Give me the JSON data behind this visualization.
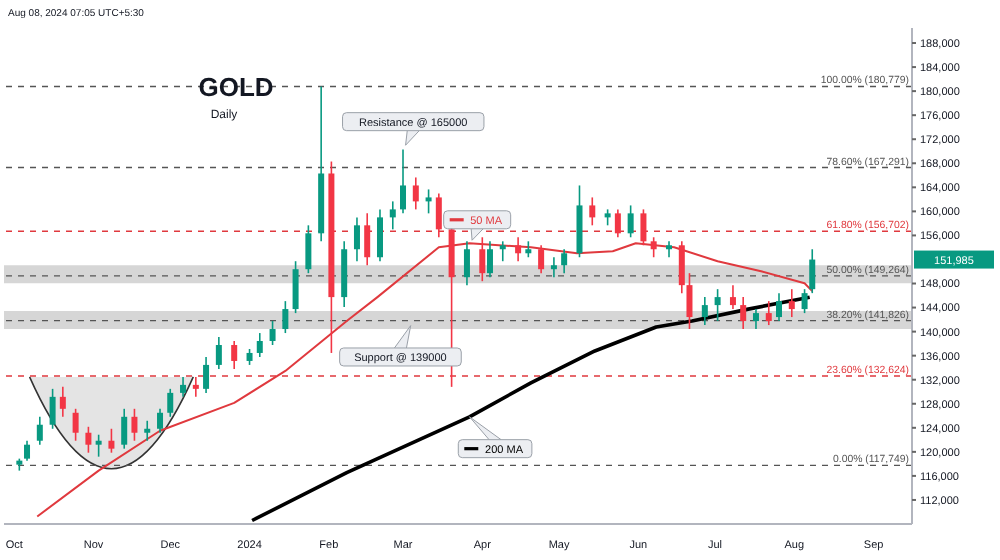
{
  "chart_data": {
    "type": "candlestick",
    "title": "GOLD",
    "subtitle": "Daily",
    "annotations": [
      "Aug 08, 2024 07:05 UTC+5:30",
      "Resistance @ 165000",
      "Support @ 139000",
      "151,985"
    ],
    "x": [
      "2023-10-03",
      "2023-10-06",
      "2023-10-11",
      "2023-10-16",
      "2023-10-20",
      "2023-10-25",
      "2023-10-30",
      "2023-11-03",
      "2023-11-08",
      "2023-11-13",
      "2023-11-17",
      "2023-11-22",
      "2023-11-27",
      "2023-12-01",
      "2023-12-06",
      "2023-12-11",
      "2023-12-15",
      "2023-12-20",
      "2023-12-26",
      "2024-01-01",
      "2024-01-05",
      "2024-01-10",
      "2024-01-15",
      "2024-01-19",
      "2024-01-24",
      "2024-01-29",
      "2024-02-02",
      "2024-02-07",
      "2024-02-12",
      "2024-02-16",
      "2024-02-21",
      "2024-02-26",
      "2024-03-01",
      "2024-03-06",
      "2024-03-11",
      "2024-03-15",
      "2024-03-20",
      "2024-03-26",
      "2024-04-01",
      "2024-04-04",
      "2024-04-09",
      "2024-04-15",
      "2024-04-19",
      "2024-04-24",
      "2024-04-29",
      "2024-05-03",
      "2024-05-09",
      "2024-05-14",
      "2024-05-20",
      "2024-05-24",
      "2024-05-29",
      "2024-06-03",
      "2024-06-07",
      "2024-06-13",
      "2024-06-18",
      "2024-06-21",
      "2024-06-27",
      "2024-07-02",
      "2024-07-08",
      "2024-07-12",
      "2024-07-17",
      "2024-07-22",
      "2024-07-26",
      "2024-07-31",
      "2024-08-05",
      "2024-08-08"
    ],
    "ohlc": [
      [
        117870,
        118870,
        116880,
        118540
      ],
      [
        118870,
        121850,
        118540,
        121190
      ],
      [
        121850,
        125830,
        121190,
        124510
      ],
      [
        124510,
        130480,
        123840,
        129150
      ],
      [
        129150,
        130810,
        125830,
        127160
      ],
      [
        126500,
        127160,
        121850,
        123180
      ],
      [
        123180,
        124170,
        119860,
        121190
      ],
      [
        121190,
        122850,
        119200,
        121850
      ],
      [
        121850,
        123840,
        119860,
        120530
      ],
      [
        121190,
        127160,
        120530,
        125830
      ],
      [
        125830,
        127160,
        121850,
        123180
      ],
      [
        123180,
        125170,
        121850,
        123840
      ],
      [
        123840,
        127160,
        123180,
        126500
      ],
      [
        126500,
        130480,
        125830,
        129810
      ],
      [
        129810,
        132470,
        129150,
        131140
      ],
      [
        131140,
        132470,
        129150,
        130480
      ],
      [
        130480,
        135780,
        129810,
        134460
      ],
      [
        134460,
        139100,
        133790,
        137770
      ],
      [
        137770,
        138440,
        133790,
        135120
      ],
      [
        135120,
        137110,
        134460,
        136450
      ],
      [
        136450,
        139760,
        135780,
        138440
      ],
      [
        138440,
        141760,
        137770,
        140430
      ],
      [
        140430,
        145070,
        139760,
        143750
      ],
      [
        143750,
        151710,
        143080,
        150380
      ],
      [
        150380,
        157680,
        149720,
        156350
      ],
      [
        156350,
        180779,
        155020,
        166300
      ],
      [
        166300,
        168290,
        136450,
        145740
      ],
      [
        145740,
        155020,
        144080,
        153700
      ],
      [
        153700,
        159000,
        151710,
        157680
      ],
      [
        157680,
        159670,
        151040,
        152370
      ],
      [
        152370,
        160330,
        151710,
        159000
      ],
      [
        159000,
        161660,
        157010,
        160330
      ],
      [
        160330,
        170280,
        159670,
        164310
      ],
      [
        164310,
        165640,
        160330,
        161660
      ],
      [
        161660,
        163650,
        159670,
        162320
      ],
      [
        162320,
        162980,
        155690,
        157010
      ],
      [
        157010,
        157680,
        130810,
        149050
      ],
      [
        149050,
        155020,
        147730,
        153700
      ],
      [
        153700,
        155690,
        148390,
        149720
      ],
      [
        149720,
        155020,
        149050,
        153700
      ],
      [
        153700,
        155020,
        151710,
        154360
      ],
      [
        154360,
        155690,
        151710,
        153030
      ],
      [
        153030,
        155020,
        152370,
        153700
      ],
      [
        153700,
        154360,
        149720,
        150380
      ],
      [
        150380,
        152370,
        149050,
        151040
      ],
      [
        151040,
        153700,
        149720,
        153030
      ],
      [
        153030,
        164310,
        152370,
        160990
      ],
      [
        160990,
        162320,
        157680,
        159000
      ],
      [
        159000,
        160330,
        157680,
        159670
      ],
      [
        159670,
        160330,
        155690,
        156350
      ],
      [
        156350,
        160990,
        155690,
        159670
      ],
      [
        159670,
        160330,
        154360,
        155020
      ],
      [
        155020,
        155690,
        152370,
        153700
      ],
      [
        153700,
        155020,
        152370,
        154360
      ],
      [
        154360,
        155020,
        146400,
        147730
      ],
      [
        147730,
        149720,
        140430,
        142420
      ],
      [
        142420,
        145740,
        141090,
        144410
      ],
      [
        144410,
        147060,
        141760,
        145740
      ],
      [
        145740,
        147730,
        143750,
        144410
      ],
      [
        144410,
        145740,
        140430,
        141760
      ],
      [
        141760,
        143750,
        140430,
        143080
      ],
      [
        143080,
        145070,
        141090,
        141760
      ],
      [
        142420,
        146400,
        141760,
        145070
      ],
      [
        145070,
        147060,
        142420,
        143750
      ],
      [
        143750,
        147060,
        143080,
        146400
      ],
      [
        147060,
        153700,
        146400,
        151985
      ]
    ],
    "series": [
      {
        "name": "50 MA",
        "type": "line",
        "color": "#e0393e",
        "x": [
          "2023-10-10",
          "2023-11-03",
          "2023-11-27",
          "2023-12-26",
          "2024-01-15",
          "2024-02-08",
          "2024-02-20",
          "2024-03-15",
          "2024-03-27",
          "2024-04-20",
          "2024-05-08",
          "2024-05-22",
          "2024-05-31",
          "2024-06-15",
          "2024-07-02",
          "2024-07-19",
          "2024-08-05",
          "2024-08-08"
        ],
        "values": [
          109250,
          116880,
          123510,
          128150,
          133460,
          141750,
          145730,
          154030,
          154690,
          154030,
          153030,
          153370,
          154690,
          154030,
          151710,
          150050,
          148040,
          146730
        ]
      },
      {
        "name": "200 MA",
        "type": "line",
        "color": "#000000",
        "x": [
          "2024-01-02",
          "2024-02-08",
          "2024-03-27",
          "2024-04-20",
          "2024-05-15",
          "2024-06-08",
          "2024-06-22",
          "2024-07-14",
          "2024-08-07"
        ],
        "values": [
          108580,
          116540,
          125830,
          131470,
          136780,
          140760,
          141750,
          143740,
          145730
        ]
      }
    ],
    "xlim": [
      "2023-09-27",
      "2024-09-16"
    ],
    "xticks": [
      {
        "value": "2023-10-01",
        "label": "Oct"
      },
      {
        "value": "2023-11-01",
        "label": "Nov"
      },
      {
        "value": "2023-12-01",
        "label": "Dec"
      },
      {
        "value": "2024-01-01",
        "label": "2024"
      },
      {
        "value": "2024-02-01",
        "label": "Feb"
      },
      {
        "value": "2024-03-01",
        "label": "Mar"
      },
      {
        "value": "2024-04-01",
        "label": "Apr"
      },
      {
        "value": "2024-05-01",
        "label": "May"
      },
      {
        "value": "2024-06-01",
        "label": "Jun"
      },
      {
        "value": "2024-07-01",
        "label": "Jul"
      },
      {
        "value": "2024-08-01",
        "label": "Aug"
      },
      {
        "value": "2024-09-01",
        "label": "Sep"
      }
    ],
    "ylim": [
      108000,
      190500
    ],
    "yticks": [
      {
        "value": 112000,
        "label": "112,000"
      },
      {
        "value": 116000,
        "label": "116,000"
      },
      {
        "value": 120000,
        "label": "120,000"
      },
      {
        "value": 124000,
        "label": "124,000"
      },
      {
        "value": 128000,
        "label": "128,000"
      },
      {
        "value": 132000,
        "label": "132,000"
      },
      {
        "value": 136000,
        "label": "136,000"
      },
      {
        "value": 140000,
        "label": "140,000"
      },
      {
        "value": 144000,
        "label": "144,000"
      },
      {
        "value": 148000,
        "label": "148,000"
      },
      {
        "value": 156000,
        "label": "156,000"
      },
      {
        "value": 160000,
        "label": "160,000"
      },
      {
        "value": 164000,
        "label": "164,000"
      },
      {
        "value": 168000,
        "label": "168,000"
      },
      {
        "value": 172000,
        "label": "172,000"
      },
      {
        "value": 176000,
        "label": "176,000"
      },
      {
        "value": 180000,
        "label": "180,000"
      },
      {
        "value": 184000,
        "label": "184,000"
      },
      {
        "value": 188000,
        "label": "188,000"
      }
    ],
    "ref_lines": [
      {
        "axis": "y",
        "value": 180779,
        "label": "100.00% (180,779)",
        "color": "#555555",
        "line_style": "dashed"
      },
      {
        "axis": "y",
        "value": 167291,
        "label": "78.60% (167,291)",
        "color": "#555555",
        "line_style": "dashed"
      },
      {
        "axis": "y",
        "value": 156702,
        "label": "61.80% (156,702)",
        "color": "#e0393e",
        "line_style": "dashed"
      },
      {
        "axis": "y",
        "value": 149264,
        "label": "50.00% (149,264)",
        "color": "#555555",
        "line_style": "dashed"
      },
      {
        "axis": "y",
        "value": 141826,
        "label": "38.20% (141,826)",
        "color": "#555555",
        "line_style": "dashed"
      },
      {
        "axis": "y",
        "value": 132624,
        "label": "23.60% (132,624)",
        "color": "#e0393e",
        "line_style": "dashed"
      },
      {
        "axis": "y",
        "value": 117749,
        "label": "0.00% (117,749)",
        "color": "#555555",
        "line_style": "dashed"
      }
    ],
    "bands": [
      {
        "axis": "y",
        "from": 148040,
        "to": 151040,
        "color": "#d6d6d6"
      },
      {
        "axis": "y",
        "from": 140430,
        "to": 143410,
        "color": "#d6d6d6"
      }
    ],
    "marker": "none",
    "legend": "center"
  }
}
